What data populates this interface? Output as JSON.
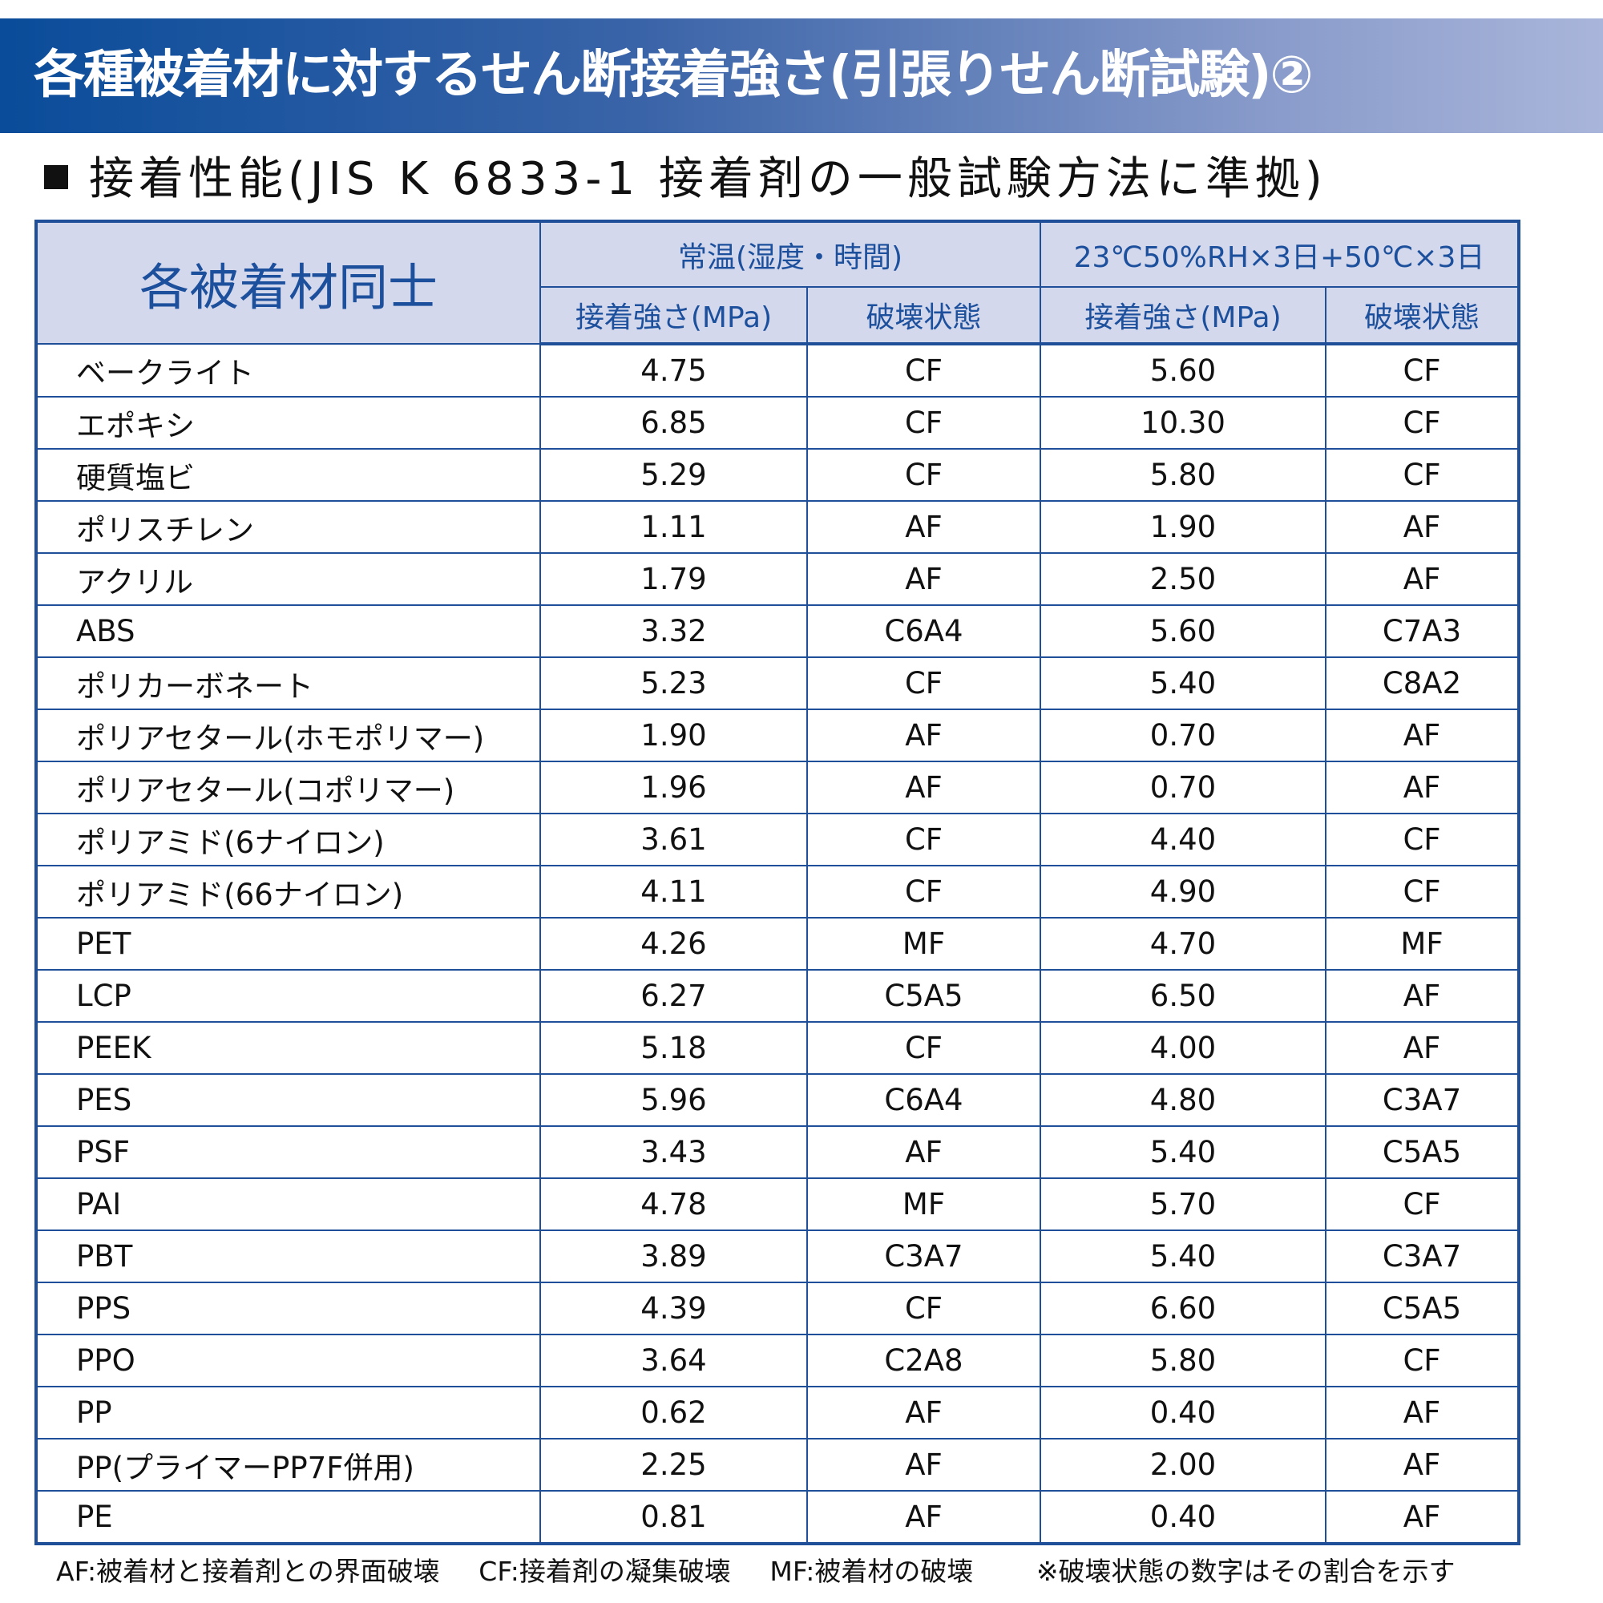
{
  "title": "各種被着材に対するせん断接着強さ(引張りせん断試験)②",
  "subtitle": "接着性能(JIS K 6833-1 接着剤の一般試験方法に準拠)",
  "colors": {
    "banner_start": "#0a4c9a",
    "banner_end": "#a9b5da",
    "header_bg": "#d3d8ec",
    "border": "#1f4f98"
  },
  "table": {
    "material_header": "各被着材同士",
    "groups": [
      "常温(湿度・時間)",
      "23℃50%RH×3日+50℃×3日"
    ],
    "sub_headers": [
      "接着強さ(MPa)",
      "破壊状態",
      "接着強さ(MPa)",
      "破壊状態"
    ],
    "rows": [
      [
        "ベークライト",
        "4.75",
        "CF",
        "5.60",
        "CF"
      ],
      [
        "エポキシ",
        "6.85",
        "CF",
        "10.30",
        "CF"
      ],
      [
        "硬質塩ビ",
        "5.29",
        "CF",
        "5.80",
        "CF"
      ],
      [
        "ポリスチレン",
        "1.11",
        "AF",
        "1.90",
        "AF"
      ],
      [
        "アクリル",
        "1.79",
        "AF",
        "2.50",
        "AF"
      ],
      [
        "ABS",
        "3.32",
        "C6A4",
        "5.60",
        "C7A3"
      ],
      [
        "ポリカーボネート",
        "5.23",
        "CF",
        "5.40",
        "C8A2"
      ],
      [
        "ポリアセタール(ホモポリマー)",
        "1.90",
        "AF",
        "0.70",
        "AF"
      ],
      [
        "ポリアセタール(コポリマー)",
        "1.96",
        "AF",
        "0.70",
        "AF"
      ],
      [
        "ポリアミド(6ナイロン)",
        "3.61",
        "CF",
        "4.40",
        "CF"
      ],
      [
        "ポリアミド(66ナイロン)",
        "4.11",
        "CF",
        "4.90",
        "CF"
      ],
      [
        "PET",
        "4.26",
        "MF",
        "4.70",
        "MF"
      ],
      [
        "LCP",
        "6.27",
        "C5A5",
        "6.50",
        "AF"
      ],
      [
        "PEEK",
        "5.18",
        "CF",
        "4.00",
        "AF"
      ],
      [
        "PES",
        "5.96",
        "C6A4",
        "4.80",
        "C3A7"
      ],
      [
        "PSF",
        "3.43",
        "AF",
        "5.40",
        "C5A5"
      ],
      [
        "PAI",
        "4.78",
        "MF",
        "5.70",
        "CF"
      ],
      [
        "PBT",
        "3.89",
        "C3A7",
        "5.40",
        "C3A7"
      ],
      [
        "PPS",
        "4.39",
        "CF",
        "6.60",
        "C5A5"
      ],
      [
        "PPO",
        "3.64",
        "C2A8",
        "5.80",
        "CF"
      ],
      [
        "PP",
        "0.62",
        "AF",
        "0.40",
        "AF"
      ],
      [
        "PP(プライマーPP7F併用)",
        "2.25",
        "AF",
        "2.00",
        "AF"
      ],
      [
        "PE",
        "0.81",
        "AF",
        "0.40",
        "AF"
      ]
    ]
  },
  "legend": [
    "AF:被着材と接着剤との界面破壊",
    "CF:接着剤の凝集破壊",
    "MF:被着材の破壊"
  ],
  "note": "※破壊状態の数字はその割合を示す"
}
